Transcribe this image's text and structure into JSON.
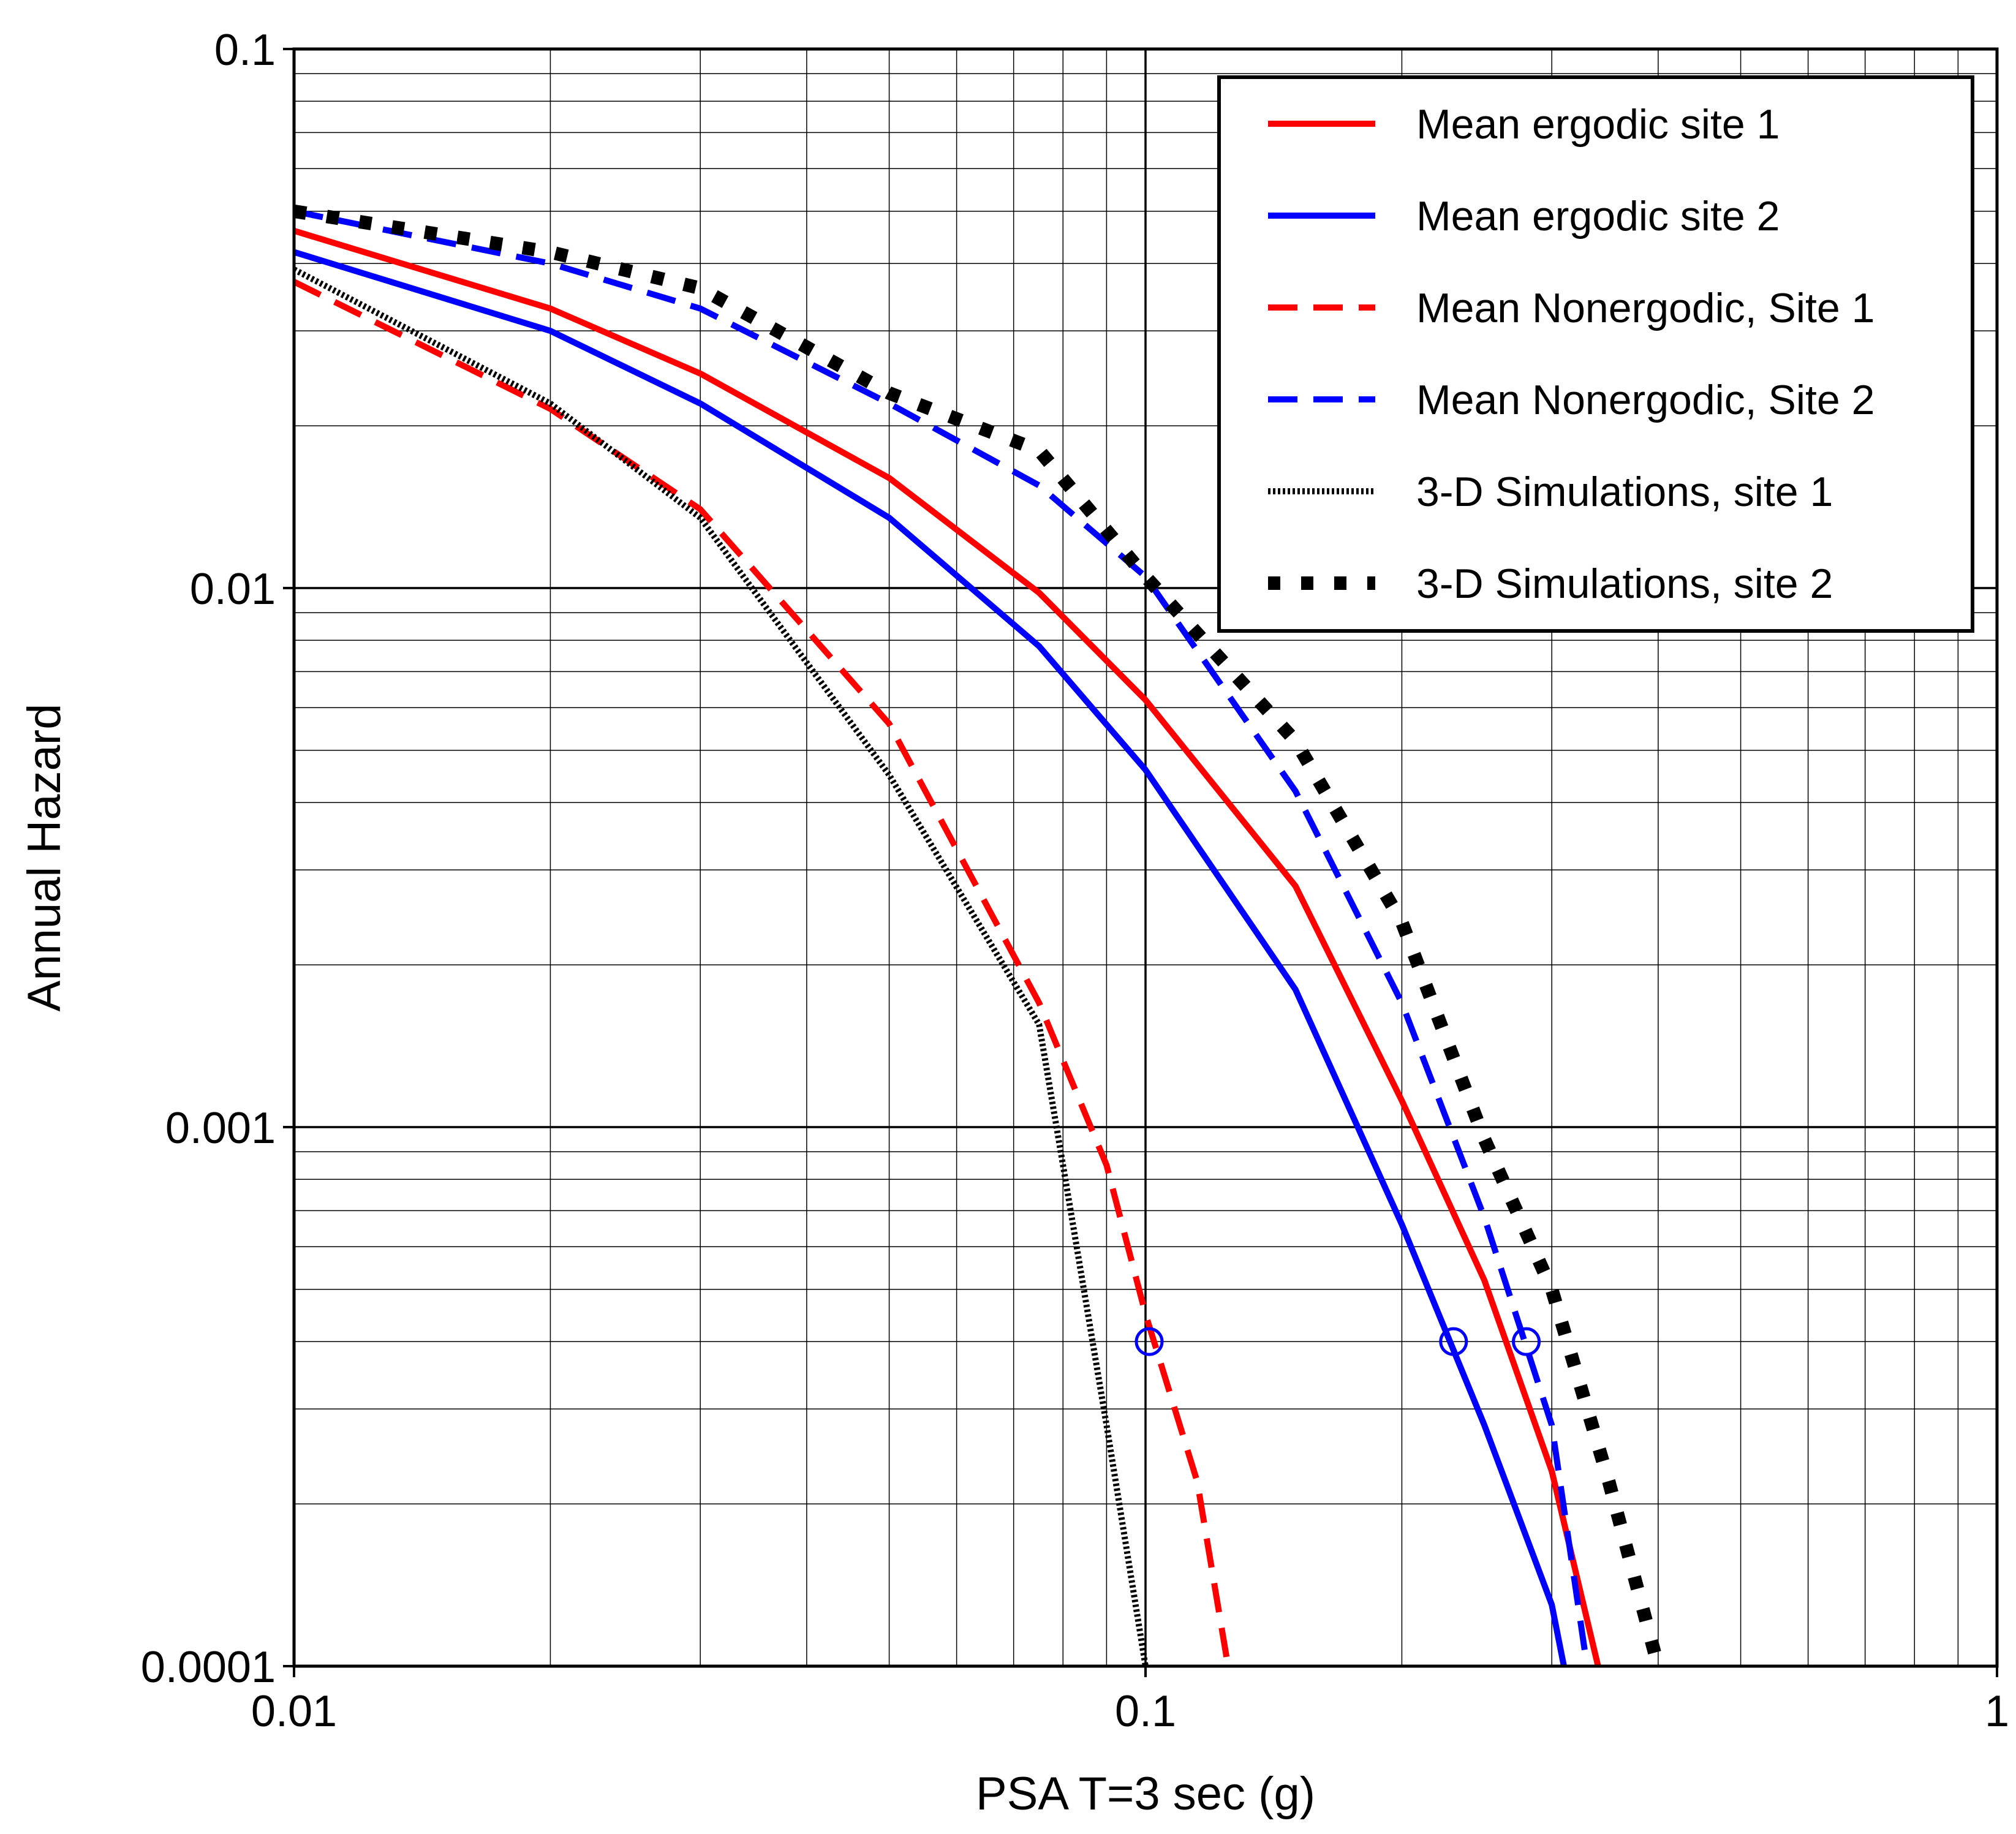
{
  "chart_data": {
    "type": "line",
    "title": "",
    "xlabel": "PSA T=3 sec (g)",
    "ylabel": "Annual Hazard",
    "xscale": "log",
    "yscale": "log",
    "xlim": [
      0.01,
      1
    ],
    "ylim": [
      0.0001,
      0.1
    ],
    "grid": true,
    "legend_position": "top-right",
    "x_ticks": [
      {
        "value": 0.01,
        "label": "0.01"
      },
      {
        "value": 0.1,
        "label": "0.1"
      },
      {
        "value": 1,
        "label": "1"
      }
    ],
    "y_ticks": [
      {
        "value": 0.1,
        "label": "0.1"
      },
      {
        "value": 0.01,
        "label": "0.01"
      },
      {
        "value": 0.001,
        "label": "0.001"
      },
      {
        "value": 0.0001,
        "label": "0.0001"
      }
    ],
    "series": [
      {
        "name": "Mean ergodic site 1",
        "color": "#ff0000",
        "style": "solid",
        "points": [
          [
            0.01,
            0.046
          ],
          [
            0.02,
            0.033
          ],
          [
            0.03,
            0.025
          ],
          [
            0.05,
            0.016
          ],
          [
            0.075,
            0.0098
          ],
          [
            0.1,
            0.0062
          ],
          [
            0.15,
            0.0028
          ],
          [
            0.2,
            0.00112
          ],
          [
            0.25,
            0.00052
          ],
          [
            0.3,
            0.00023
          ],
          [
            0.34,
            0.0001
          ]
        ]
      },
      {
        "name": "Mean ergodic site 2",
        "color": "#0000ff",
        "style": "solid",
        "points": [
          [
            0.01,
            0.042
          ],
          [
            0.02,
            0.03
          ],
          [
            0.03,
            0.022
          ],
          [
            0.05,
            0.0135
          ],
          [
            0.075,
            0.0078
          ],
          [
            0.1,
            0.0046
          ],
          [
            0.15,
            0.0018
          ],
          [
            0.2,
            0.00066
          ],
          [
            0.25,
            0.00028
          ],
          [
            0.3,
            0.00013
          ],
          [
            0.31,
            0.0001
          ]
        ]
      },
      {
        "name": "Mean Nonergodic, Site 1",
        "color": "#ff0000",
        "style": "dashed",
        "points": [
          [
            0.01,
            0.037
          ],
          [
            0.02,
            0.0215
          ],
          [
            0.03,
            0.014
          ],
          [
            0.05,
            0.0056
          ],
          [
            0.075,
            0.0017
          ],
          [
            0.09,
            0.00085
          ],
          [
            0.1,
            0.00045
          ],
          [
            0.115,
            0.00022
          ],
          [
            0.125,
            0.0001
          ]
        ]
      },
      {
        "name": "Mean Nonergodic, Site 2",
        "color": "#0000ff",
        "style": "dashed",
        "points": [
          [
            0.01,
            0.05
          ],
          [
            0.02,
            0.04
          ],
          [
            0.03,
            0.033
          ],
          [
            0.05,
            0.022
          ],
          [
            0.075,
            0.0155
          ],
          [
            0.1,
            0.0105
          ],
          [
            0.15,
            0.0042
          ],
          [
            0.2,
            0.0017
          ],
          [
            0.25,
            0.00068
          ],
          [
            0.3,
            0.00028
          ],
          [
            0.33,
            0.0001
          ]
        ]
      },
      {
        "name": "3-D Simulations, site 1",
        "color": "#000000",
        "style": "dotted",
        "points": [
          [
            0.01,
            0.039
          ],
          [
            0.02,
            0.022
          ],
          [
            0.03,
            0.0135
          ],
          [
            0.05,
            0.0045
          ],
          [
            0.075,
            0.00155
          ],
          [
            0.08,
            0.00085
          ],
          [
            0.09,
            0.00028
          ],
          [
            0.1,
            0.0001
          ]
        ]
      },
      {
        "name": "3-D Simulations, site 2",
        "color": "#000000",
        "style": "dotted-heavy",
        "points": [
          [
            0.01,
            0.05
          ],
          [
            0.02,
            0.042
          ],
          [
            0.03,
            0.036
          ],
          [
            0.05,
            0.023
          ],
          [
            0.075,
            0.018
          ],
          [
            0.1,
            0.0105
          ],
          [
            0.15,
            0.0052
          ],
          [
            0.2,
            0.0024
          ],
          [
            0.25,
            0.00095
          ],
          [
            0.3,
            0.0005
          ],
          [
            0.35,
            0.00022
          ],
          [
            0.4,
            0.0001
          ]
        ]
      }
    ],
    "markers": {
      "shape": "open-circle",
      "color": "#0000ff",
      "y": 0.0004,
      "x": [
        0.101,
        0.23,
        0.28
      ]
    }
  }
}
